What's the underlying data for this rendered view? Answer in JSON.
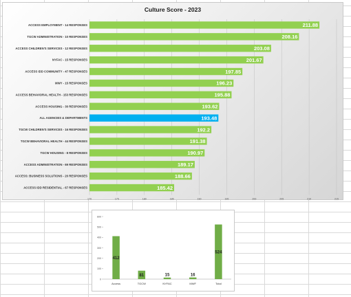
{
  "chart_data": [
    {
      "type": "bar",
      "orientation": "horizontal",
      "title": "Culture Score - 2023",
      "categories": [
        "ACCESS EMPLOYMENT - 14 RESPONSES",
        "TGCW ADMINISTRATION - 10 RESPONSES",
        "ACCESS CHILDREN'S SERVICES - 12 RESPONSES",
        "NYFAC - 15 RESPONSES",
        "ACCESS IDD COMMUNITY - 47 RESPONSES",
        "MWY - 15 RESPONSES",
        "ACCESS BEHAVIORAL HEALTH - 153 RESPONSES",
        "ACCESS HOUSING - 30 RESPONSES",
        "ALL AGENCIES & DEPARTMENTS",
        "TGCW CHILDREN'S SERVICES - 16 RESPONSES",
        "TGCW BEHAVIORAL HEALTH - 44 RESPONSES",
        "TGCW HOUSING - 8 RESPONSES",
        "ACCESS ADMINISTRATION - 69 RESPONSES",
        "ACCESS: BUSINESS SOLUTIONS - 20 RESPONSES",
        "ACCESS IDD RESIDENTIAL - 67 RESPONSES"
      ],
      "values": [
        211.88,
        208.16,
        203.08,
        201.67,
        197.85,
        196.23,
        195.88,
        193.62,
        193.48,
        192.2,
        191.38,
        190.97,
        189.17,
        188.66,
        185.42
      ],
      "value_labels": [
        "211.88",
        "208.16",
        "203.08",
        "201.67",
        "197.85",
        "196.23",
        "195.88",
        "193.62",
        "193.48",
        "192.2",
        "191.38",
        "190.97",
        "189.17",
        "188.66",
        "185.42"
      ],
      "highlight_index": 8,
      "colors": {
        "bar": "#92d050",
        "highlight": "#00b0f0"
      },
      "xlim": [
        170,
        215
      ],
      "xticks": [
        "170",
        "175",
        "180",
        "185",
        "190",
        "195",
        "200",
        "205",
        "210",
        "215"
      ],
      "grid": true,
      "legend": "none"
    },
    {
      "type": "bar",
      "title": "",
      "categories": [
        "Access",
        "TGCW",
        "NYFAC",
        "MWF",
        "Total"
      ],
      "values": [
        412,
        81,
        15,
        16,
        524
      ],
      "value_labels": [
        "412",
        "81",
        "15",
        "16",
        "524"
      ],
      "ylim": [
        0,
        600
      ],
      "yticks": [
        "600",
        "500",
        "400",
        "300",
        "200",
        "100",
        "0"
      ],
      "colors": {
        "bar": "#70ad47"
      },
      "grid": false,
      "legend": "none"
    }
  ]
}
